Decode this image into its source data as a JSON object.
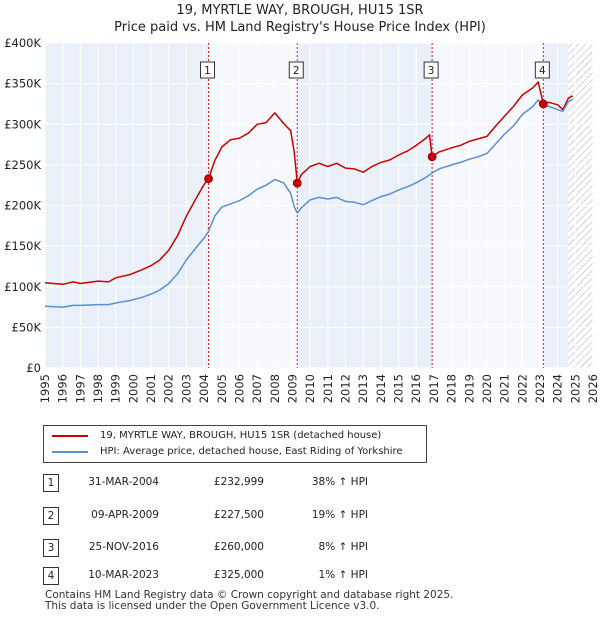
{
  "title_line1": "19, MYRTLE WAY, BROUGH, HU15 1SR",
  "title_line2": "Price paid vs. HM Land Registry's House Price Index (HPI)",
  "chart_data": {
    "type": "line",
    "title": "19, MYRTLE WAY, BROUGH, HU15 1SR",
    "subtitle": "Price paid vs. HM Land Registry's House Price Index (HPI)",
    "xlim": [
      1995,
      2026
    ],
    "ylim": [
      0,
      400000
    ],
    "x_ticks": [
      "1995",
      "1996",
      "1997",
      "1998",
      "1999",
      "2000",
      "2001",
      "2002",
      "2003",
      "2004",
      "2005",
      "2006",
      "2007",
      "2008",
      "2009",
      "2010",
      "2011",
      "2012",
      "2013",
      "2014",
      "2015",
      "2016",
      "2017",
      "2018",
      "2019",
      "2020",
      "2021",
      "2022",
      "2023",
      "2024",
      "2025",
      "2026"
    ],
    "y_ticks": [
      {
        "v": 0,
        "label": "£0"
      },
      {
        "v": 50000,
        "label": "£50K"
      },
      {
        "v": 100000,
        "label": "£100K"
      },
      {
        "v": 150000,
        "label": "£150K"
      },
      {
        "v": 200000,
        "label": "£200K"
      },
      {
        "v": 250000,
        "label": "£250K"
      },
      {
        "v": 300000,
        "label": "£300K"
      },
      {
        "v": 350000,
        "label": "£350K"
      },
      {
        "v": 400000,
        "label": "£400K"
      }
    ],
    "grid": true,
    "forecast_from": 2024.6,
    "series": [
      {
        "name": "19, MYRTLE WAY, BROUGH, HU15 1SR (detached house)",
        "color": "#cc0000",
        "points": [
          [
            1995,
            105000
          ],
          [
            1996,
            103000
          ],
          [
            1996.6,
            106000
          ],
          [
            1997,
            104000
          ],
          [
            1998,
            107000
          ],
          [
            1998.6,
            106000
          ],
          [
            1999,
            111000
          ],
          [
            1999.8,
            115000
          ],
          [
            2000.5,
            121000
          ],
          [
            2001,
            126000
          ],
          [
            2001.5,
            133000
          ],
          [
            2002,
            145000
          ],
          [
            2002.5,
            163000
          ],
          [
            2003,
            187000
          ],
          [
            2003.5,
            207000
          ],
          [
            2004,
            226000
          ],
          [
            2004.25,
            232999
          ],
          [
            2004.6,
            255000
          ],
          [
            2005,
            272000
          ],
          [
            2005.5,
            281000
          ],
          [
            2006,
            283000
          ],
          [
            2006.5,
            289000
          ],
          [
            2007,
            300000
          ],
          [
            2007.5,
            302000
          ],
          [
            2008,
            314000
          ],
          [
            2008.5,
            301000
          ],
          [
            2008.9,
            292000
          ],
          [
            2009.1,
            265000
          ],
          [
            2009.27,
            227500
          ],
          [
            2009.5,
            238000
          ],
          [
            2010,
            248000
          ],
          [
            2010.5,
            252000
          ],
          [
            2011,
            248000
          ],
          [
            2011.5,
            252000
          ],
          [
            2012,
            246000
          ],
          [
            2012.5,
            245000
          ],
          [
            2013,
            241000
          ],
          [
            2013.5,
            248000
          ],
          [
            2014,
            253000
          ],
          [
            2014.5,
            256000
          ],
          [
            2015,
            262000
          ],
          [
            2015.5,
            267000
          ],
          [
            2016,
            274000
          ],
          [
            2016.5,
            282000
          ],
          [
            2016.75,
            287000
          ],
          [
            2016.9,
            260000
          ],
          [
            2017.3,
            266000
          ],
          [
            2018,
            271000
          ],
          [
            2018.5,
            274000
          ],
          [
            2019,
            279000
          ],
          [
            2019.5,
            282000
          ],
          [
            2020,
            285000
          ],
          [
            2020.5,
            298000
          ],
          [
            2021,
            310000
          ],
          [
            2021.5,
            322000
          ],
          [
            2022,
            336000
          ],
          [
            2022.6,
            345000
          ],
          [
            2022.9,
            352000
          ],
          [
            2023.19,
            325000
          ],
          [
            2023.5,
            327000
          ],
          [
            2024,
            324000
          ],
          [
            2024.3,
            318000
          ],
          [
            2024.6,
            332000
          ],
          [
            2024.85,
            335000
          ]
        ]
      },
      {
        "name": "HPI: Average price, detached house, East Riding of Yorkshire",
        "color": "#5b8fd4",
        "points": [
          [
            1995,
            76000
          ],
          [
            1996,
            75000
          ],
          [
            1996.6,
            77000
          ],
          [
            1997,
            77000
          ],
          [
            1998,
            78000
          ],
          [
            1998.6,
            78000
          ],
          [
            1999,
            80000
          ],
          [
            1999.8,
            83000
          ],
          [
            2000.5,
            87000
          ],
          [
            2001,
            91000
          ],
          [
            2001.5,
            96000
          ],
          [
            2002,
            104000
          ],
          [
            2002.5,
            116000
          ],
          [
            2003,
            133000
          ],
          [
            2003.5,
            147000
          ],
          [
            2004,
            160000
          ],
          [
            2004.25,
            168000
          ],
          [
            2004.6,
            187000
          ],
          [
            2005,
            198000
          ],
          [
            2005.5,
            202000
          ],
          [
            2006,
            206000
          ],
          [
            2006.5,
            212000
          ],
          [
            2007,
            220000
          ],
          [
            2007.5,
            225000
          ],
          [
            2008,
            232000
          ],
          [
            2008.5,
            228000
          ],
          [
            2008.9,
            215000
          ],
          [
            2009.1,
            198000
          ],
          [
            2009.27,
            191000
          ],
          [
            2009.5,
            197000
          ],
          [
            2010,
            207000
          ],
          [
            2010.5,
            210000
          ],
          [
            2011,
            208000
          ],
          [
            2011.5,
            210000
          ],
          [
            2012,
            205000
          ],
          [
            2012.5,
            204000
          ],
          [
            2013,
            201000
          ],
          [
            2013.5,
            206000
          ],
          [
            2014,
            211000
          ],
          [
            2014.5,
            214000
          ],
          [
            2015,
            219000
          ],
          [
            2015.5,
            223000
          ],
          [
            2016,
            228000
          ],
          [
            2016.5,
            234000
          ],
          [
            2016.9,
            240000
          ],
          [
            2017.3,
            245000
          ],
          [
            2018,
            250000
          ],
          [
            2018.5,
            253000
          ],
          [
            2019,
            257000
          ],
          [
            2019.5,
            260000
          ],
          [
            2020,
            264000
          ],
          [
            2020.5,
            276000
          ],
          [
            2021,
            288000
          ],
          [
            2021.5,
            298000
          ],
          [
            2022,
            312000
          ],
          [
            2022.6,
            322000
          ],
          [
            2022.9,
            330000
          ],
          [
            2023.19,
            322000
          ],
          [
            2023.5,
            322000
          ],
          [
            2024,
            318000
          ],
          [
            2024.3,
            316000
          ],
          [
            2024.6,
            328000
          ],
          [
            2024.85,
            331000
          ]
        ]
      }
    ],
    "annotations": [
      {
        "label": "1",
        "x": 2004.25,
        "y": 232999,
        "shade_to": 2009.27
      },
      {
        "label": "2",
        "x": 2009.27,
        "y": 227500,
        "shade_to": null
      },
      {
        "label": "3",
        "x": 2016.9,
        "y": 260000,
        "shade_to": 2023.19
      },
      {
        "label": "4",
        "x": 2023.19,
        "y": 325000,
        "shade_to": null
      }
    ]
  },
  "legend": {
    "property_label": "19, MYRTLE WAY, BROUGH, HU15 1SR (detached house)",
    "hpi_label": "HPI: Average price, detached house, East Riding of Yorkshire"
  },
  "sales": [
    {
      "num": "1",
      "date": "31-MAR-2004",
      "price": "£232,999",
      "hpi": "38% ↑ HPI"
    },
    {
      "num": "2",
      "date": "09-APR-2009",
      "price": "£227,500",
      "hpi": "19% ↑ HPI"
    },
    {
      "num": "3",
      "date": "25-NOV-2016",
      "price": "£260,000",
      "hpi": "8% ↑ HPI"
    },
    {
      "num": "4",
      "date": "10-MAR-2023",
      "price": "£325,000",
      "hpi": "1% ↑ HPI"
    }
  ],
  "footer": {
    "line1": "Contains HM Land Registry data © Crown copyright and database right 2025.",
    "line2": "This data is licensed under the Open Government Licence v3.0."
  }
}
